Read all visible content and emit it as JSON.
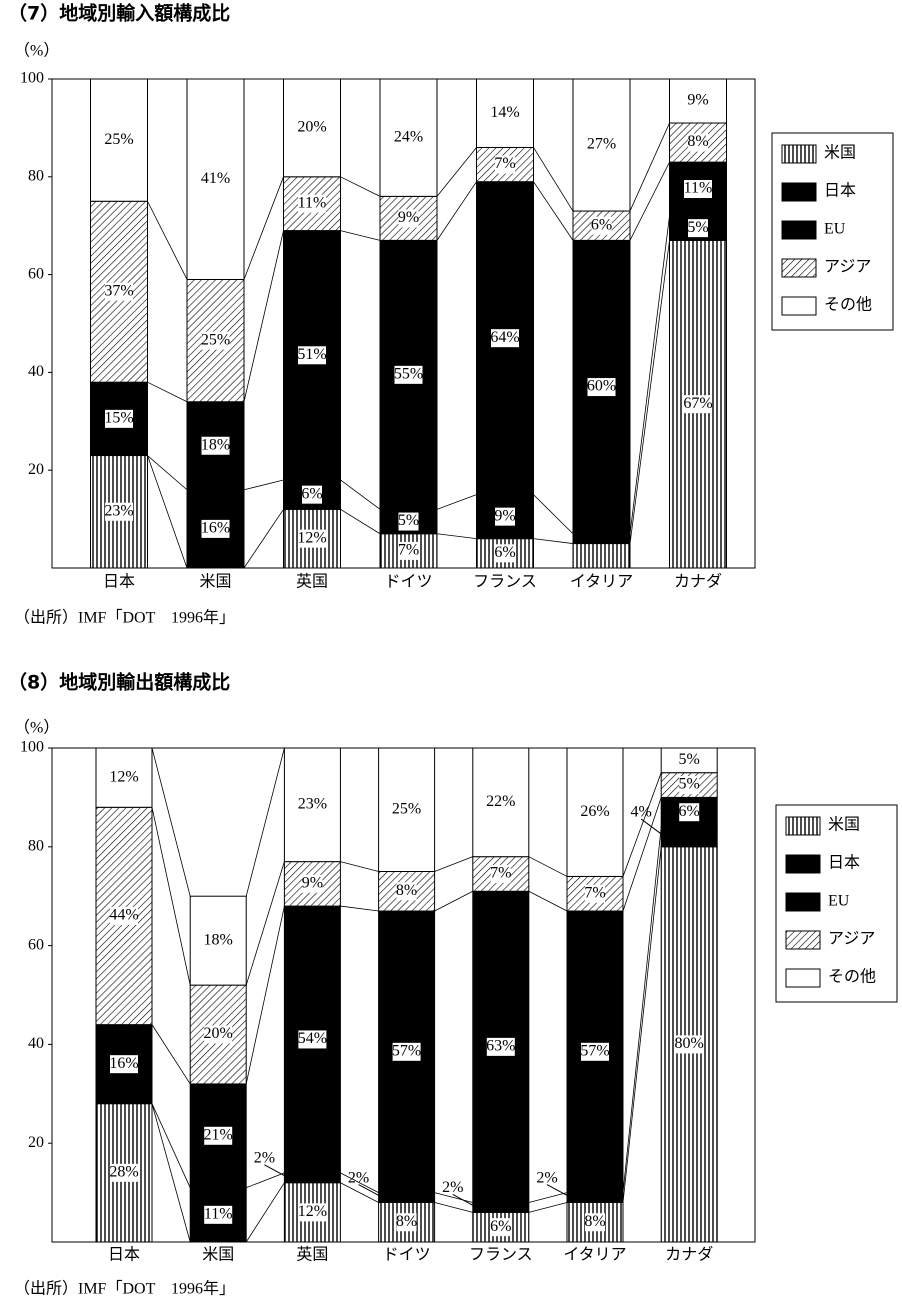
{
  "chart_data": [
    {
      "type": "stacked-bar",
      "title": "（7）地域別輸入額構成比",
      "unit_label": "（%）",
      "source": "（出所）IMF「DOT　1996年」",
      "categories": [
        "日本",
        "米国",
        "英国",
        "ドイツ",
        "フランス",
        "イタリア",
        "カナダ"
      ],
      "ylim": [
        0,
        100
      ],
      "yticks": [
        20,
        40,
        60,
        80,
        100
      ],
      "grid": false,
      "legend": "right",
      "series": [
        {
          "name": "米国",
          "color": "#000000",
          "pattern": "vertical",
          "values": [
            23,
            null,
            12,
            7,
            6,
            5,
            67
          ],
          "value_labels": [
            "23%",
            null,
            "12%",
            "7%",
            "6%",
            null,
            "67%"
          ]
        },
        {
          "name": "日本",
          "color": "#000000",
          "pattern": "solid",
          "values": [
            null,
            16,
            6,
            5,
            9,
            2,
            5
          ],
          "value_labels": [
            null,
            "16%",
            "6%",
            "5%",
            "9%",
            null,
            "5%"
          ]
        },
        {
          "name": "EU",
          "color": "#000000",
          "pattern": "solid",
          "values": [
            15,
            18,
            51,
            55,
            64,
            60,
            11
          ],
          "value_labels": [
            "15%",
            "18%",
            "51%",
            "55%",
            "64%",
            "60%",
            "11%"
          ]
        },
        {
          "name": "アジア",
          "color": "#000000",
          "pattern": "diagonal",
          "values": [
            37,
            25,
            11,
            9,
            7,
            6,
            8
          ],
          "value_labels": [
            "37%",
            "25%",
            "11%",
            "9%",
            "7%",
            "6%",
            "8%"
          ]
        },
        {
          "name": "その他",
          "color": "#ffffff",
          "pattern": "none",
          "values": [
            25,
            41,
            20,
            24,
            14,
            27,
            9
          ],
          "value_labels": [
            "25%",
            "41%",
            "20%",
            "24%",
            "14%",
            "27%",
            "9%"
          ]
        }
      ]
    },
    {
      "type": "stacked-bar",
      "title": "（8）地域別輸出額構成比",
      "unit_label": "（%）",
      "source": "（出所）IMF「DOT　1996年」",
      "categories": [
        "日本",
        "米国",
        "英国",
        "ドイツ",
        "フランス",
        "イタリア",
        "カナダ"
      ],
      "ylim": [
        0,
        100
      ],
      "yticks": [
        20,
        40,
        60,
        80,
        100
      ],
      "grid": false,
      "legend": "right",
      "series": [
        {
          "name": "米国",
          "color": "#000000",
          "pattern": "vertical",
          "values": [
            28,
            null,
            12,
            8,
            6,
            8,
            80
          ],
          "value_labels": [
            "28%",
            null,
            "12%",
            "8%",
            "6%",
            "8%",
            "80%"
          ]
        },
        {
          "name": "日本",
          "color": "#000000",
          "pattern": "solid",
          "values": [
            null,
            11,
            2,
            2,
            2,
            2,
            4
          ],
          "value_labels": [
            null,
            "11%",
            "2%",
            "2%",
            "2%",
            "2%",
            "4%"
          ]
        },
        {
          "name": "EU",
          "color": "#000000",
          "pattern": "solid",
          "values": [
            16,
            21,
            54,
            57,
            63,
            57,
            6
          ],
          "value_labels": [
            "16%",
            "21%",
            "54%",
            "57%",
            "63%",
            "57%",
            "6%"
          ]
        },
        {
          "name": "アジア",
          "color": "#000000",
          "pattern": "diagonal",
          "values": [
            44,
            20,
            9,
            8,
            7,
            7,
            5
          ],
          "value_labels": [
            "44%",
            "20%",
            "9%",
            "8%",
            "7%",
            "7%",
            "5%"
          ]
        },
        {
          "name": "その他",
          "color": "#ffffff",
          "pattern": "none",
          "values": [
            12,
            18,
            23,
            25,
            22,
            26,
            5
          ],
          "value_labels": [
            "12%",
            "18%",
            "23%",
            "25%",
            "22%",
            "26%",
            "5%"
          ]
        }
      ]
    }
  ]
}
